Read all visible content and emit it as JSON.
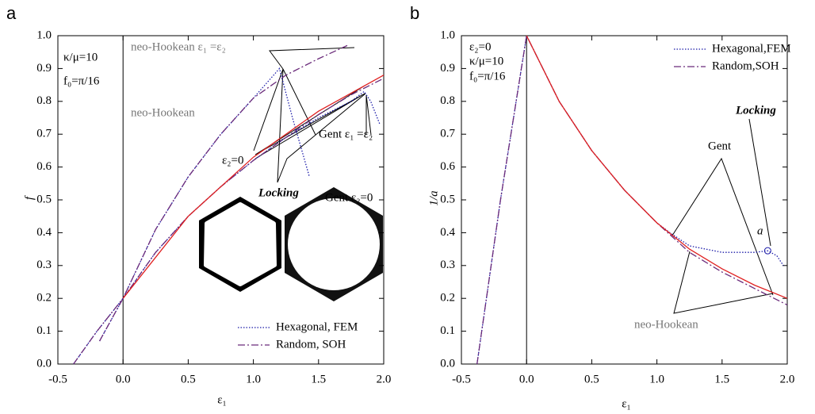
{
  "chart_data": [
    {
      "type": "line",
      "panel": "a",
      "ylabel": "f",
      "xlabel": "ε₁",
      "xlim": [
        -0.5,
        2.0
      ],
      "ylim": [
        0.0,
        1.0
      ],
      "xticks": [
        {
          "value": -0.5,
          "label": "-0.5"
        },
        {
          "value": 0,
          "label": "0.0"
        },
        {
          "value": 0.5,
          "label": "0.5"
        },
        {
          "value": 1,
          "label": "1.0"
        },
        {
          "value": 1.5,
          "label": "1.5"
        },
        {
          "value": 2,
          "label": "2.0"
        }
      ],
      "yticks": [
        {
          "value": 0,
          "label": "0.0"
        },
        {
          "value": 0.1,
          "label": "0.1"
        },
        {
          "value": 0.2,
          "label": "0.2"
        },
        {
          "value": 0.3,
          "label": "0.3"
        },
        {
          "value": 0.4,
          "label": "0.4"
        },
        {
          "value": 0.5,
          "label": "0.5"
        },
        {
          "value": 0.6,
          "label": "0.6"
        },
        {
          "value": 0.7,
          "label": "0.7"
        },
        {
          "value": 0.8,
          "label": "0.8"
        },
        {
          "value": 0.9,
          "label": "0.9"
        },
        {
          "value": 1,
          "label": "1.0"
        }
      ],
      "legend": "lower right",
      "series": [
        {
          "name": "Hexagonal, FEM",
          "color": "#1a1aa8",
          "style": "dotted",
          "x": [
            -0.38,
            -0.2,
            0,
            0.25,
            0.5,
            0.75,
            1.0,
            1.25,
            1.5,
            1.75,
            1.85,
            1.9,
            1.97
          ],
          "values": [
            0,
            0.1,
            0.2,
            0.34,
            0.45,
            0.54,
            0.62,
            0.69,
            0.75,
            0.8,
            0.83,
            0.8,
            0.73
          ]
        },
        {
          "name": "Random, SOH",
          "color": "#6a2a7a",
          "style": "dashdot",
          "x": [
            -0.38,
            -0.2,
            0,
            0.25,
            0.5,
            0.75,
            1.0,
            1.25,
            1.5,
            1.75,
            2.0
          ],
          "values": [
            0,
            0.1,
            0.2,
            0.34,
            0.45,
            0.54,
            0.62,
            0.69,
            0.76,
            0.82,
            0.87
          ]
        },
        {
          "color": "#1a1aa8",
          "style": "dotted",
          "x": [
            -0.18,
            0,
            0.25,
            0.5,
            0.75,
            1.0,
            1.2,
            1.3,
            1.43
          ],
          "values": [
            0.07,
            0.2,
            0.41,
            0.57,
            0.7,
            0.81,
            0.9,
            0.75,
            0.57
          ]
        },
        {
          "color": "#6a2a7a",
          "style": "dashdot",
          "x": [
            -0.18,
            0,
            0.25,
            0.5,
            0.75,
            1.0,
            1.25,
            1.5,
            1.72
          ],
          "values": [
            0.07,
            0.2,
            0.41,
            0.57,
            0.7,
            0.81,
            0.88,
            0.93,
            0.97
          ]
        },
        {
          "color": "#e02020",
          "style": "solid",
          "x": [
            0,
            0.5,
            1.0,
            1.5,
            2.0
          ],
          "values": [
            0.2,
            0.45,
            0.63,
            0.77,
            0.88
          ]
        }
      ],
      "annotations": [
        "κ/μ=10",
        "f₀=π/16",
        "neo-Hookean ε₁ =ε₂",
        "neo-Hookean",
        "Gent ε₁ =ε₂",
        "ε₂=0",
        "Gent ε₂=0",
        "Locking"
      ]
    },
    {
      "type": "line",
      "panel": "b",
      "ylabel": "1/a",
      "xlabel": "ε₁",
      "xlim": [
        -0.5,
        2.0
      ],
      "ylim": [
        0.0,
        1.0
      ],
      "xticks": [
        {
          "value": -0.5,
          "label": "-0.5"
        },
        {
          "value": 0,
          "label": "0.0"
        },
        {
          "value": 0.5,
          "label": "0.5"
        },
        {
          "value": 1,
          "label": "1.0"
        },
        {
          "value": 1.5,
          "label": "1.5"
        },
        {
          "value": 2,
          "label": "2.0"
        }
      ],
      "yticks": [
        {
          "value": 0,
          "label": "0.0"
        },
        {
          "value": 0.1,
          "label": "0.1"
        },
        {
          "value": 0.2,
          "label": "0.2"
        },
        {
          "value": 0.3,
          "label": "0.3"
        },
        {
          "value": 0.4,
          "label": "0.4"
        },
        {
          "value": 0.5,
          "label": "0.5"
        },
        {
          "value": 0.6,
          "label": "0.6"
        },
        {
          "value": 0.7,
          "label": "0.7"
        },
        {
          "value": 0.8,
          "label": "0.8"
        },
        {
          "value": 0.9,
          "label": "0.9"
        },
        {
          "value": 1,
          "label": "1.0"
        }
      ],
      "legend": "upper right",
      "series": [
        {
          "name": "Hexagonal,FEM",
          "color": "#1a1aa8",
          "style": "dotted",
          "x": [
            -0.38,
            -0.2,
            0,
            0.25,
            0.5,
            0.75,
            1.0,
            1.1,
            1.25,
            1.5,
            1.75,
            1.85,
            1.92,
            1.97
          ],
          "values": [
            0,
            0.5,
            1,
            0.8,
            0.65,
            0.53,
            0.43,
            0.4,
            0.36,
            0.34,
            0.34,
            0.345,
            0.33,
            0.3
          ]
        },
        {
          "name": "Random,SOH",
          "color": "#6a2a7a",
          "style": "dashdot",
          "x": [
            -0.38,
            -0.2,
            0,
            0.25,
            0.5,
            0.75,
            1.0,
            1.25,
            1.5,
            1.75,
            2.0
          ],
          "values": [
            0,
            0.5,
            1,
            0.8,
            0.65,
            0.53,
            0.43,
            0.34,
            0.28,
            0.23,
            0.18
          ]
        },
        {
          "color": "#e02020",
          "style": "solid",
          "x": [
            0,
            0.25,
            0.5,
            0.75,
            1.0,
            1.25,
            1.5,
            1.75,
            2.0
          ],
          "values": [
            1,
            0.8,
            0.65,
            0.53,
            0.43,
            0.35,
            0.29,
            0.24,
            0.2
          ]
        }
      ],
      "locking_point": {
        "x": 1.85,
        "y": 0.345
      },
      "annotations": [
        "ε₂=0",
        "κ/μ=10",
        "f₀=π/16",
        "Locking",
        "Gent",
        "a",
        "neo-Hookean"
      ]
    }
  ]
}
